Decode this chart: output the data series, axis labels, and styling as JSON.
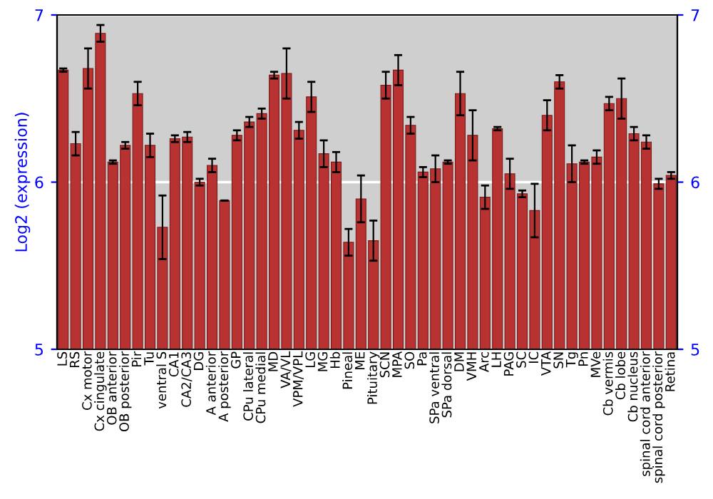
{
  "chart_data": {
    "type": "bar",
    "ylabel": "Log2 (expression)",
    "categories": [
      "LS",
      "RS",
      "Cx motor",
      "Cx cingulate",
      "OB anterior",
      "OB posterior",
      "Pir",
      "Tu",
      "ventral S",
      "CA1",
      "CA2/CA3",
      "DG",
      "A anterior",
      "A posterior",
      "GP",
      "CPu lateral",
      "CPu medial",
      "MD",
      "VA/VL",
      "VPM/VPL",
      "LG",
      "MG",
      "Hb",
      "Pineal",
      "ME",
      "Pituitary",
      "SCN",
      "MPA",
      "SO",
      "Pa",
      "SPa ventral",
      "SPa dorsal",
      "DM",
      "VMH",
      "Arc",
      "LH",
      "PAG",
      "SC",
      "IC",
      "VTA",
      "SN",
      "Tg",
      "Pn",
      "MVe",
      "Cb vermis",
      "Cb lobe",
      "Cb nucleus",
      "spinal cord anterior",
      "spinal cord posterior",
      "Retina"
    ],
    "series": [
      {
        "color": "#b83232",
        "values": [
          6.67,
          6.23,
          6.68,
          6.89,
          6.12,
          6.22,
          6.53,
          6.22,
          5.73,
          6.26,
          6.27,
          6.0,
          6.1,
          5.89,
          6.28,
          6.36,
          6.41,
          6.64,
          6.65,
          6.31,
          6.51,
          6.17,
          6.12,
          5.64,
          5.9,
          5.65,
          6.58,
          6.67,
          6.34,
          6.06,
          6.08,
          6.12,
          6.53,
          6.28,
          5.91,
          6.32,
          6.05,
          5.93,
          5.83,
          6.4,
          6.6,
          6.11,
          6.12,
          6.15,
          6.47,
          6.5,
          6.29,
          6.24,
          5.99,
          6.04
        ],
        "errors": [
          0.01,
          0.07,
          0.12,
          0.05,
          0.01,
          0.02,
          0.07,
          0.07,
          0.19,
          0.02,
          0.03,
          0.02,
          0.04,
          null,
          0.03,
          0.03,
          0.03,
          0.02,
          0.15,
          0.05,
          0.09,
          0.08,
          0.06,
          0.08,
          0.14,
          0.12,
          0.08,
          0.09,
          0.05,
          0.03,
          0.08,
          0.01,
          0.13,
          0.15,
          0.07,
          0.01,
          0.09,
          0.02,
          0.16,
          0.09,
          0.04,
          0.11,
          0.01,
          0.04,
          0.04,
          0.12,
          0.04,
          0.04,
          0.03,
          0.02
        ]
      }
    ],
    "ylim": [
      5,
      7
    ],
    "yticks": [
      5,
      6,
      7
    ],
    "y2lim": [
      5,
      7
    ],
    "y2ticks": [
      5,
      6,
      7
    ],
    "grid": "y"
  }
}
